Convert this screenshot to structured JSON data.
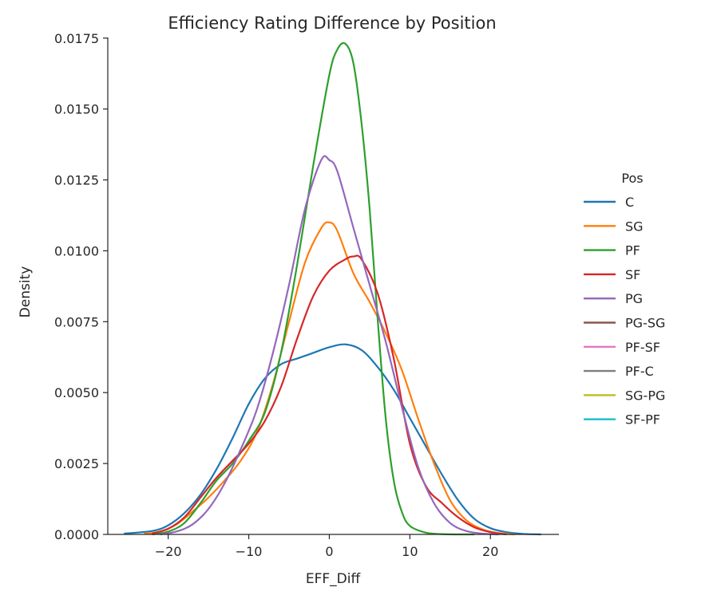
{
  "chart_data": {
    "type": "line",
    "title": "Efficiency Rating Difference by Position",
    "xlabel": "EFF_Diff",
    "ylabel": "Density",
    "xlim": [
      -27.5,
      28.5
    ],
    "ylim": [
      0,
      0.018
    ],
    "x_ticks": [
      -20,
      -10,
      0,
      10,
      20
    ],
    "x_tick_labels": [
      "−20",
      "−10",
      "0",
      "10",
      "20"
    ],
    "y_ticks": [
      0,
      0.0025,
      0.005,
      0.0075,
      0.01,
      0.0125,
      0.015,
      0.0175
    ],
    "y_tick_labels": [
      "0.0000",
      "0.0025",
      "0.0050",
      "0.0075",
      "0.0100",
      "0.0125",
      "0.0150",
      "0.0175"
    ],
    "grid": false,
    "legend_title": "Pos",
    "legend_placement": "right",
    "series": [
      {
        "name": "C",
        "color": "#1f77b4",
        "x": [
          -25.5,
          -22,
          -20,
          -18,
          -16,
          -14,
          -12,
          -10,
          -8,
          -6,
          -4,
          -2,
          0,
          2,
          4,
          6,
          8,
          10,
          12,
          14,
          16,
          18,
          20,
          22,
          24,
          26.3
        ],
        "y": [
          3e-05,
          0.00012,
          0.00032,
          0.00075,
          0.0014,
          0.0023,
          0.0034,
          0.0046,
          0.0055,
          0.006,
          0.0062,
          0.0064,
          0.0066,
          0.0067,
          0.0065,
          0.0059,
          0.0051,
          0.0041,
          0.0031,
          0.0021,
          0.0012,
          0.00055,
          0.00022,
          8e-05,
          2e-05,
          0.0
        ]
      },
      {
        "name": "SG",
        "color": "#ff7f0e",
        "x": [
          -23,
          -21,
          -19,
          -17,
          -15,
          -13,
          -11,
          -9,
          -7,
          -5,
          -3,
          -1,
          0,
          1,
          3,
          5,
          7,
          9,
          11,
          13,
          15,
          17,
          19,
          21,
          23
        ],
        "y": [
          2e-05,
          0.0001,
          0.00035,
          0.0008,
          0.0013,
          0.0019,
          0.0026,
          0.0036,
          0.0053,
          0.0075,
          0.0096,
          0.0108,
          0.011,
          0.0107,
          0.0092,
          0.0082,
          0.0071,
          0.0058,
          0.0041,
          0.0025,
          0.0012,
          0.0005,
          0.00018,
          5e-05,
          0.0
        ]
      },
      {
        "name": "PF",
        "color": "#2ca02c",
        "x": [
          -22,
          -20,
          -18,
          -16,
          -14,
          -12,
          -10,
          -8,
          -6,
          -4,
          -2,
          0,
          1,
          2,
          3,
          4,
          5,
          6,
          7,
          8,
          9,
          10,
          12,
          14,
          16,
          18
        ],
        "y": [
          0.0,
          0.0001,
          0.0004,
          0.0011,
          0.0019,
          0.0025,
          0.0033,
          0.0043,
          0.0064,
          0.0095,
          0.013,
          0.0162,
          0.0171,
          0.0173,
          0.0166,
          0.0145,
          0.0115,
          0.0076,
          0.0041,
          0.0019,
          0.0008,
          0.0003,
          6e-05,
          1e-05,
          0.0,
          0.0
        ]
      },
      {
        "name": "SF",
        "color": "#d62728",
        "x": [
          -22,
          -20,
          -18,
          -16,
          -14,
          -12,
          -10,
          -8,
          -6,
          -4,
          -2,
          0,
          2,
          3,
          4,
          6,
          8,
          10,
          12,
          14,
          16,
          18,
          20,
          22
        ],
        "y": [
          3e-05,
          0.0002,
          0.0006,
          0.0013,
          0.002,
          0.0026,
          0.0032,
          0.004,
          0.0052,
          0.0069,
          0.0084,
          0.0093,
          0.0097,
          0.0098,
          0.0097,
          0.0085,
          0.0062,
          0.0032,
          0.0017,
          0.0011,
          0.0006,
          0.00025,
          8e-05,
          0.0
        ]
      },
      {
        "name": "PG",
        "color": "#9467bd",
        "x": [
          -21,
          -19,
          -17,
          -15,
          -13,
          -11,
          -9,
          -7,
          -5,
          -3,
          -1,
          0,
          1,
          3,
          5,
          7,
          9,
          11,
          13,
          15,
          17,
          19,
          21
        ],
        "y": [
          0.0,
          0.0001,
          0.00035,
          0.0009,
          0.0018,
          0.003,
          0.0044,
          0.0064,
          0.0088,
          0.0115,
          0.0132,
          0.0132,
          0.0128,
          0.0108,
          0.0088,
          0.0068,
          0.0045,
          0.0024,
          0.0011,
          0.0004,
          0.00012,
          3e-05,
          0.0
        ]
      }
    ],
    "legend_only_series": [
      {
        "name": "PG-SG",
        "color": "#8c564b"
      },
      {
        "name": "PF-SF",
        "color": "#e377c2"
      },
      {
        "name": "PF-C",
        "color": "#7f7f7f"
      },
      {
        "name": "SG-PG",
        "color": "#bcbd22"
      },
      {
        "name": "SF-PF",
        "color": "#17becf"
      }
    ]
  }
}
